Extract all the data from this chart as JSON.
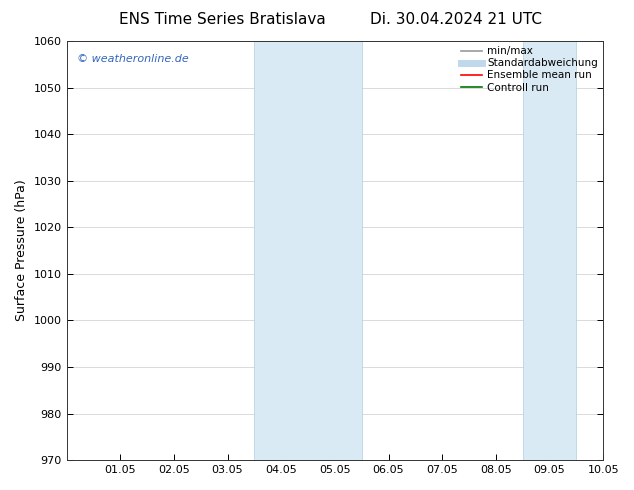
{
  "title_left": "ENS Time Series Bratislava",
  "title_right": "Di. 30.04.2024 21 UTC",
  "ylabel": "Surface Pressure (hPa)",
  "ylim": [
    970,
    1060
  ],
  "yticks": [
    970,
    980,
    990,
    1000,
    1010,
    1020,
    1030,
    1040,
    1050,
    1060
  ],
  "xtick_labels": [
    "01.05",
    "02.05",
    "03.05",
    "04.05",
    "05.05",
    "06.05",
    "07.05",
    "08.05",
    "09.05",
    "10.05"
  ],
  "xlim": [
    0.0,
    10.0
  ],
  "shaded_regions": [
    {
      "xmin": 3.5,
      "xmax": 5.5
    },
    {
      "xmin": 8.5,
      "xmax": 9.5
    }
  ],
  "shade_color": "#daeaf5",
  "shade_edge_color": "#b0cfe0",
  "watermark_text": "© weatheronline.de",
  "watermark_color": "#3366bb",
  "background_color": "#ffffff",
  "plot_bg_color": "#ffffff",
  "legend_entries": [
    {
      "label": "min/max",
      "color": "#999999",
      "lw": 1.2,
      "style": "solid"
    },
    {
      "label": "Standardabweichung",
      "color": "#c0d8ec",
      "lw": 5,
      "style": "solid"
    },
    {
      "label": "Ensemble mean run",
      "color": "#ff0000",
      "lw": 1.2,
      "style": "solid"
    },
    {
      "label": "Controll run",
      "color": "#007700",
      "lw": 1.2,
      "style": "solid"
    }
  ],
  "title_fontsize": 11,
  "tick_fontsize": 8,
  "ylabel_fontsize": 9,
  "watermark_fontsize": 8
}
